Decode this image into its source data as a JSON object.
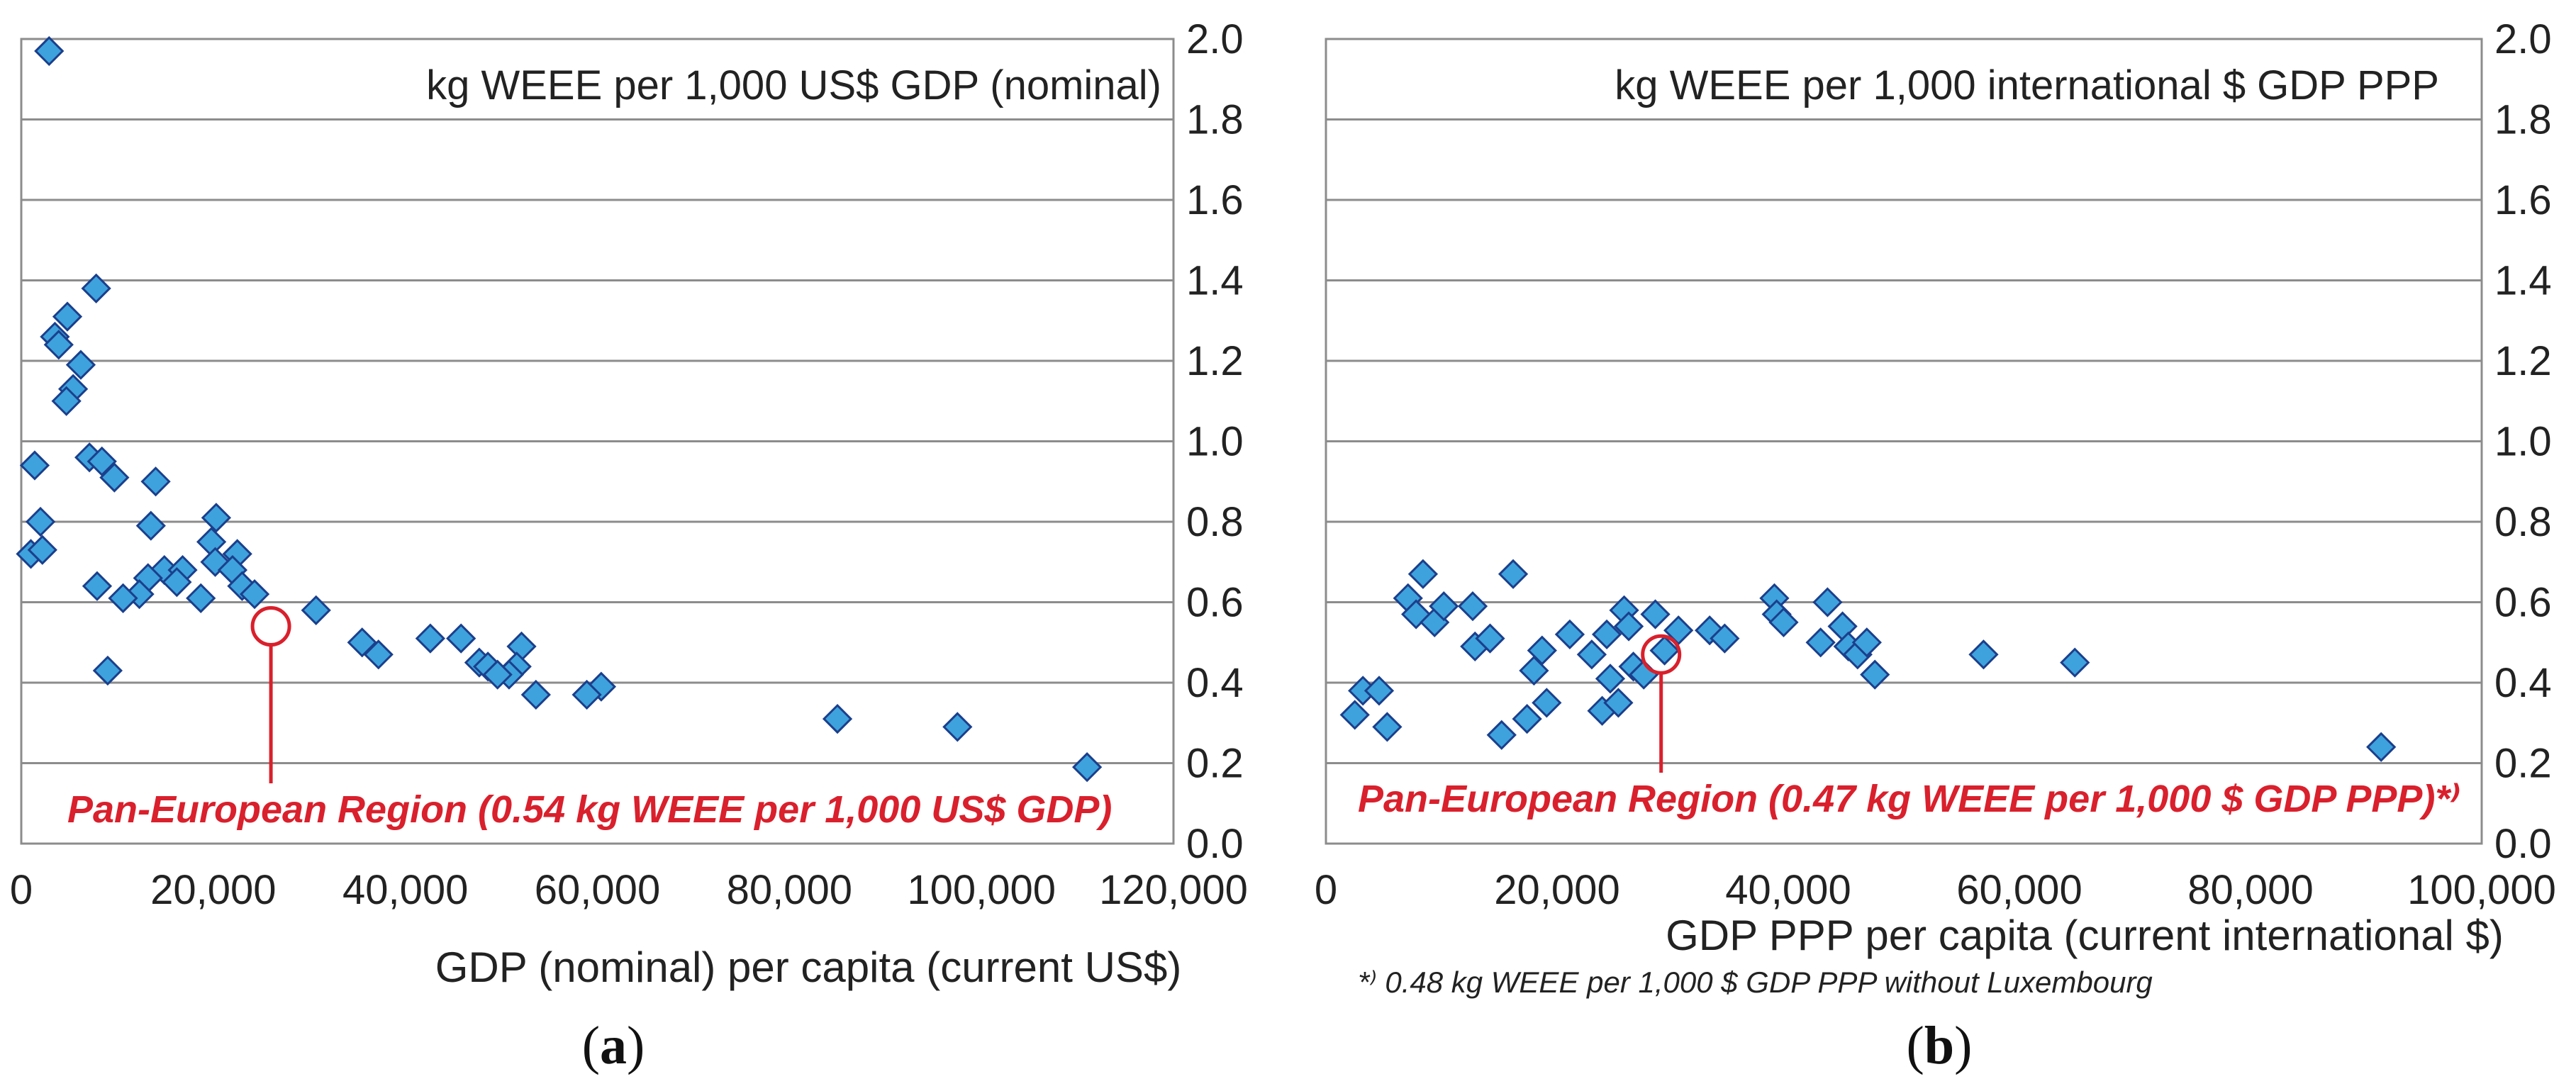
{
  "chart_data": [
    {
      "type": "scatter",
      "panel": "a",
      "panel_label_prefix": "(",
      "panel_label_letter": "a",
      "panel_label_suffix": ")",
      "title": "kg WEEE per 1,000 US$ GDP (nominal)",
      "xlabel": "GDP (nominal) per capita (current US$)",
      "ylabel": "",
      "xlim": [
        0,
        120000
      ],
      "ylim": [
        0,
        2.0
      ],
      "x_ticks": [
        "0",
        "20,000",
        "40,000",
        "60,000",
        "80,000",
        "100,000",
        "120,000"
      ],
      "y_ticks": [
        "0.0",
        "0.2",
        "0.4",
        "0.6",
        "0.8",
        "1.0",
        "1.2",
        "1.4",
        "1.6",
        "1.8",
        "2.0"
      ],
      "y_axis_side": "right",
      "grid": true,
      "marker_color": "#3ea2dc",
      "marker_edge": "#1b3f8c",
      "highlight_color": "#d9202c",
      "points": [
        {
          "x": 2900,
          "y": 1.97
        },
        {
          "x": 7800,
          "y": 1.38
        },
        {
          "x": 4800,
          "y": 1.31
        },
        {
          "x": 3500,
          "y": 1.26
        },
        {
          "x": 3900,
          "y": 1.24
        },
        {
          "x": 6200,
          "y": 1.19
        },
        {
          "x": 5400,
          "y": 1.13
        },
        {
          "x": 4700,
          "y": 1.1
        },
        {
          "x": 7100,
          "y": 0.96
        },
        {
          "x": 8400,
          "y": 0.95
        },
        {
          "x": 1400,
          "y": 0.94
        },
        {
          "x": 9700,
          "y": 0.91
        },
        {
          "x": 14000,
          "y": 0.9
        },
        {
          "x": 20300,
          "y": 0.81
        },
        {
          "x": 2000,
          "y": 0.8
        },
        {
          "x": 13500,
          "y": 0.79
        },
        {
          "x": 19800,
          "y": 0.75
        },
        {
          "x": 22500,
          "y": 0.72
        },
        {
          "x": 1000,
          "y": 0.72
        },
        {
          "x": 2200,
          "y": 0.73
        },
        {
          "x": 20200,
          "y": 0.7
        },
        {
          "x": 22000,
          "y": 0.68
        },
        {
          "x": 14900,
          "y": 0.68
        },
        {
          "x": 16800,
          "y": 0.68
        },
        {
          "x": 13200,
          "y": 0.66
        },
        {
          "x": 16200,
          "y": 0.65
        },
        {
          "x": 7900,
          "y": 0.64
        },
        {
          "x": 23000,
          "y": 0.64
        },
        {
          "x": 12300,
          "y": 0.62
        },
        {
          "x": 24300,
          "y": 0.62
        },
        {
          "x": 10600,
          "y": 0.61
        },
        {
          "x": 18700,
          "y": 0.61
        },
        {
          "x": 30700,
          "y": 0.58
        },
        {
          "x": 42600,
          "y": 0.51
        },
        {
          "x": 45800,
          "y": 0.51
        },
        {
          "x": 35500,
          "y": 0.5
        },
        {
          "x": 52100,
          "y": 0.49
        },
        {
          "x": 37200,
          "y": 0.47
        },
        {
          "x": 47700,
          "y": 0.45
        },
        {
          "x": 48600,
          "y": 0.44
        },
        {
          "x": 51600,
          "y": 0.44
        },
        {
          "x": 50800,
          "y": 0.42
        },
        {
          "x": 49600,
          "y": 0.42
        },
        {
          "x": 9000,
          "y": 0.43
        },
        {
          "x": 53600,
          "y": 0.37
        },
        {
          "x": 60400,
          "y": 0.39
        },
        {
          "x": 58900,
          "y": 0.37
        },
        {
          "x": 85000,
          "y": 0.31
        },
        {
          "x": 97500,
          "y": 0.29
        },
        {
          "x": 111000,
          "y": 0.19
        }
      ],
      "highlight": {
        "x": 26000,
        "y": 0.54
      },
      "annotation": "Pan-European Region (0.54 kg WEEE per 1,000 US$ GDP)"
    },
    {
      "type": "scatter",
      "panel": "b",
      "panel_label_prefix": "(",
      "panel_label_letter": "b",
      "panel_label_suffix": ")",
      "title": "kg WEEE per 1,000 international $ GDP PPP",
      "xlabel": "GDP PPP per capita (current international $)",
      "ylabel": "",
      "xlim": [
        0,
        100000
      ],
      "ylim": [
        0,
        2.0
      ],
      "x_ticks": [
        "0",
        "20,000",
        "40,000",
        "60,000",
        "80,000",
        "100,000"
      ],
      "y_ticks": [
        "0.0",
        "0.2",
        "0.4",
        "0.6",
        "0.8",
        "1.0",
        "1.2",
        "1.4",
        "1.6",
        "1.8",
        "2.0"
      ],
      "y_axis_side": "right",
      "grid": true,
      "marker_color": "#3ea2dc",
      "marker_edge": "#1b3f8c",
      "highlight_color": "#d9202c",
      "points": [
        {
          "x": 2500,
          "y": 0.32
        },
        {
          "x": 3200,
          "y": 0.38
        },
        {
          "x": 4600,
          "y": 0.38
        },
        {
          "x": 5300,
          "y": 0.29
        },
        {
          "x": 7100,
          "y": 0.61
        },
        {
          "x": 7800,
          "y": 0.57
        },
        {
          "x": 8400,
          "y": 0.67
        },
        {
          "x": 9400,
          "y": 0.55
        },
        {
          "x": 10200,
          "y": 0.59
        },
        {
          "x": 12700,
          "y": 0.59
        },
        {
          "x": 12900,
          "y": 0.49
        },
        {
          "x": 14200,
          "y": 0.51
        },
        {
          "x": 15200,
          "y": 0.27
        },
        {
          "x": 16200,
          "y": 0.67
        },
        {
          "x": 17400,
          "y": 0.31
        },
        {
          "x": 18000,
          "y": 0.43
        },
        {
          "x": 18700,
          "y": 0.48
        },
        {
          "x": 19100,
          "y": 0.35
        },
        {
          "x": 21100,
          "y": 0.52
        },
        {
          "x": 23000,
          "y": 0.47
        },
        {
          "x": 23900,
          "y": 0.33
        },
        {
          "x": 24300,
          "y": 0.52
        },
        {
          "x": 24600,
          "y": 0.41
        },
        {
          "x": 25300,
          "y": 0.35
        },
        {
          "x": 25800,
          "y": 0.58
        },
        {
          "x": 26200,
          "y": 0.54
        },
        {
          "x": 26600,
          "y": 0.44
        },
        {
          "x": 27500,
          "y": 0.42
        },
        {
          "x": 28500,
          "y": 0.57
        },
        {
          "x": 29300,
          "y": 0.48
        },
        {
          "x": 30500,
          "y": 0.53
        },
        {
          "x": 33200,
          "y": 0.53
        },
        {
          "x": 34500,
          "y": 0.51
        },
        {
          "x": 38800,
          "y": 0.61
        },
        {
          "x": 39000,
          "y": 0.57
        },
        {
          "x": 39600,
          "y": 0.55
        },
        {
          "x": 42800,
          "y": 0.5
        },
        {
          "x": 43400,
          "y": 0.6
        },
        {
          "x": 44700,
          "y": 0.54
        },
        {
          "x": 45200,
          "y": 0.49
        },
        {
          "x": 46000,
          "y": 0.47
        },
        {
          "x": 46800,
          "y": 0.5
        },
        {
          "x": 47500,
          "y": 0.42
        },
        {
          "x": 56900,
          "y": 0.47
        },
        {
          "x": 64800,
          "y": 0.45
        },
        {
          "x": 91300,
          "y": 0.24
        }
      ],
      "highlight": {
        "x": 29000,
        "y": 0.47
      },
      "annotation": "Pan-European Region (0.47 kg WEEE per 1,000 $ GDP PPP)*⁾",
      "footnote": "*⁾ 0.48 kg WEEE per 1,000 $ GDP PPP without Luxembourg"
    }
  ]
}
